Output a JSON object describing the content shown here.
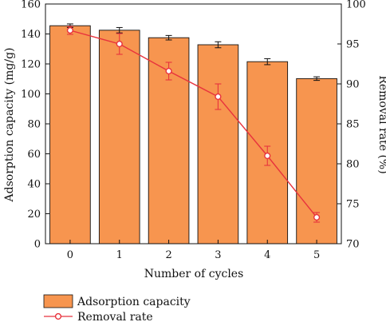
{
  "chart_data": {
    "type": "bar",
    "title": "",
    "xlabel": "Number of cycles",
    "ylabel_left": "Adsorption capacity (mg/g)",
    "ylabel_right": "Removal rate (%)",
    "categories": [
      "0",
      "1",
      "2",
      "3",
      "4",
      "5"
    ],
    "ylim_left": [
      0,
      160
    ],
    "ylim_right": [
      70,
      100
    ],
    "yticks_left": [
      0,
      20,
      40,
      60,
      80,
      100,
      120,
      140,
      160
    ],
    "yticks_right": [
      70,
      75,
      80,
      85,
      90,
      95,
      100
    ],
    "grid": false,
    "legend_position": "bottom-left, below plot",
    "series": [
      {
        "name": "Adsorption capacity",
        "type": "bar",
        "axis": "left",
        "color": "#F7954F",
        "values": [
          145.5,
          142.5,
          137.5,
          132.8,
          121.5,
          110.2
        ],
        "errors": [
          1.2,
          1.8,
          1.5,
          2.0,
          2.0,
          1.2
        ]
      },
      {
        "name": "Removal rate",
        "type": "line",
        "axis": "right",
        "color": "#E8333D",
        "values": [
          96.7,
          95.0,
          91.6,
          88.4,
          81.0,
          73.3
        ],
        "errors": [
          0.5,
          1.3,
          1.1,
          1.6,
          1.2,
          0.6
        ]
      }
    ]
  }
}
